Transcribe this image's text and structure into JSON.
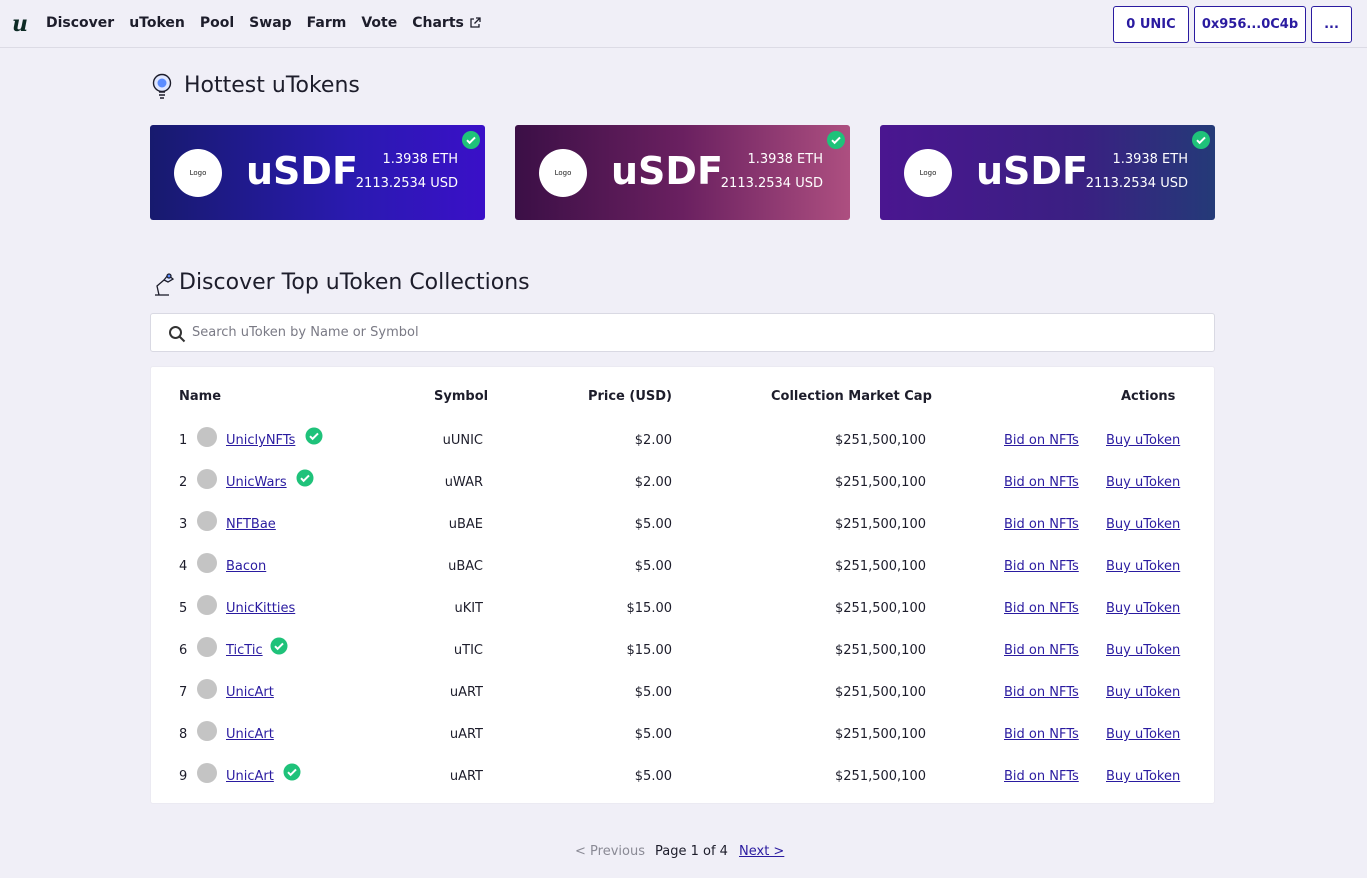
{
  "nav": {
    "logo": "u",
    "links": [
      {
        "label": "Discover"
      },
      {
        "label": "uToken"
      },
      {
        "label": "Pool"
      },
      {
        "label": "Swap"
      },
      {
        "label": "Farm"
      },
      {
        "label": "Vote"
      },
      {
        "label": "Charts",
        "icon": "external-link-icon"
      }
    ],
    "balance_button": "0 UNIC",
    "wallet_button": "0x956...0C4b",
    "more_button": "..."
  },
  "hottest": {
    "title": "Hottest uTokens",
    "icon": "lightbulb-icon",
    "cards": [
      {
        "logo": "Logo",
        "name": "uSDF",
        "eth": "1.3938 ETH",
        "usd": "2113.2534 USD",
        "verified": true
      },
      {
        "logo": "Logo",
        "name": "uSDF",
        "eth": "1.3938 ETH",
        "usd": "2113.2534 USD",
        "verified": true
      },
      {
        "logo": "Logo",
        "name": "uSDF",
        "eth": "1.3938 ETH",
        "usd": "2113.2534 USD",
        "verified": true
      }
    ]
  },
  "discover": {
    "title": "Discover Top uToken Collections",
    "icon": "desk-lamp-icon",
    "search_placeholder": "Search uToken by Name or Symbol"
  },
  "table": {
    "headers": {
      "name": "Name",
      "symbol": "Symbol",
      "price": "Price (USD)",
      "mcap": "Collection Market Cap",
      "actions": "Actions"
    },
    "rows": [
      {
        "num": "1",
        "name": "UniclyNFTs",
        "verified": true,
        "symbol": "uUNIC",
        "price": "$2.00",
        "mcap": "$251,500,100",
        "bid": "Bid on NFTs",
        "buy": "Buy uToken"
      },
      {
        "num": "2",
        "name": "UnicWars",
        "verified": true,
        "symbol": "uWAR",
        "price": "$2.00",
        "mcap": "$251,500,100",
        "bid": "Bid on NFTs",
        "buy": "Buy uToken"
      },
      {
        "num": "3",
        "name": "NFTBae",
        "verified": false,
        "symbol": "uBAE",
        "price": "$5.00",
        "mcap": "$251,500,100",
        "bid": "Bid on NFTs",
        "buy": "Buy uToken"
      },
      {
        "num": "4",
        "name": "Bacon",
        "verified": false,
        "symbol": "uBAC",
        "price": "$5.00",
        "mcap": "$251,500,100",
        "bid": "Bid on NFTs",
        "buy": "Buy uToken"
      },
      {
        "num": "5",
        "name": "UnicKitties",
        "verified": false,
        "symbol": "uKIT",
        "price": "$15.00",
        "mcap": "$251,500,100",
        "bid": "Bid on NFTs",
        "buy": "Buy uToken"
      },
      {
        "num": "6",
        "name": "TicTic",
        "verified": true,
        "symbol": "uTIC",
        "price": "$15.00",
        "mcap": "$251,500,100",
        "bid": "Bid on NFTs",
        "buy": "Buy uToken"
      },
      {
        "num": "7",
        "name": "UnicArt",
        "verified": false,
        "symbol": "uART",
        "price": "$5.00",
        "mcap": "$251,500,100",
        "bid": "Bid on NFTs",
        "buy": "Buy uToken"
      },
      {
        "num": "8",
        "name": "UnicArt",
        "verified": false,
        "symbol": "uART",
        "price": "$5.00",
        "mcap": "$251,500,100",
        "bid": "Bid on NFTs",
        "buy": "Buy uToken"
      },
      {
        "num": "9",
        "name": "UnicArt",
        "verified": true,
        "symbol": "uART",
        "price": "$5.00",
        "mcap": "$251,500,100",
        "bid": "Bid on NFTs",
        "buy": "Buy uToken"
      }
    ]
  },
  "pagination": {
    "previous": "< Previous",
    "page_info": "Page 1 of 4",
    "next": "Next >"
  },
  "colors": {
    "accent": "#2a1ba0",
    "verified": "#1fc27a",
    "background": "#f0eff7"
  }
}
